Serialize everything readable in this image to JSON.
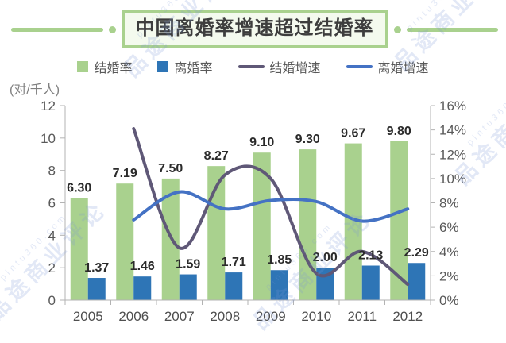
{
  "title": {
    "text": "中国离婚率增速超过结婚率"
  },
  "watermark": {
    "site_text": "品途商业评论",
    "url_text": "pintu360.com"
  },
  "legend": [
    {
      "label": "结婚率",
      "type": "square",
      "color": "#a9d18e"
    },
    {
      "label": "离婚率",
      "type": "square",
      "color": "#2e75b6"
    },
    {
      "label": "结婚增速",
      "type": "line",
      "color": "#5f5877"
    },
    {
      "label": "离婚增速",
      "type": "line",
      "color": "#4472c4"
    }
  ],
  "chart_data": {
    "type": "combo-bar-line",
    "title": "中国离婚率增速超过结婚率",
    "categories": [
      "2005",
      "2006",
      "2007",
      "2008",
      "2009",
      "2010",
      "2011",
      "2012"
    ],
    "left_axis": {
      "label": "(对/千人)",
      "min": 0,
      "max": 12,
      "step": 2
    },
    "right_axis": {
      "min": 0,
      "max": 16,
      "step": 2,
      "suffix": "%"
    },
    "bar_series": [
      {
        "name": "结婚率",
        "color": "#a9d18e",
        "values": [
          6.3,
          7.19,
          7.5,
          8.27,
          9.1,
          9.3,
          9.67,
          9.8
        ],
        "labels": [
          "6.30",
          "7.19",
          "7.50",
          "8.27",
          "9.10",
          "9.30",
          "9.67",
          "9.80"
        ]
      },
      {
        "name": "离婚率",
        "color": "#2e75b6",
        "values": [
          1.37,
          1.46,
          1.59,
          1.71,
          1.85,
          2.0,
          2.13,
          2.29
        ],
        "labels": [
          "1.37",
          "1.46",
          "1.59",
          "1.71",
          "1.85",
          "2.00",
          "2.13",
          "2.29"
        ]
      }
    ],
    "line_series": [
      {
        "name": "结婚增速",
        "color": "#5f5877",
        "values_pct": [
          null,
          14.1,
          4.3,
          10.3,
          10.0,
          2.2,
          4.0,
          1.3
        ]
      },
      {
        "name": "离婚增速",
        "color": "#4472c4",
        "values_pct": [
          null,
          6.6,
          8.9,
          7.5,
          8.2,
          8.1,
          6.5,
          7.5
        ]
      }
    ],
    "legend_position": "top",
    "grid": false
  }
}
